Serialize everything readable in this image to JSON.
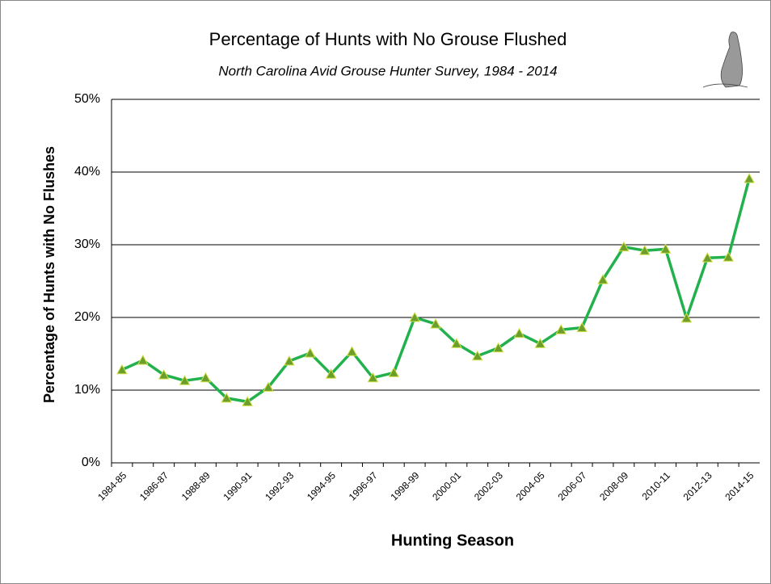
{
  "chart_data": {
    "type": "line",
    "title": "Percentage of Hunts with No Grouse Flushed",
    "subtitle": "North Carolina Avid Grouse Hunter Survey, 1984 - 2014",
    "x_label": "Hunting Season",
    "y_label": "Percentage of Hunts with No Flushes",
    "categories": [
      "1984-85",
      null,
      "1986-87",
      null,
      "1988-89",
      null,
      "1990-91",
      null,
      "1992-93",
      null,
      "1994-95",
      null,
      "1996-97",
      null,
      "1998-99",
      null,
      "2000-01",
      null,
      "2002-03",
      null,
      "2004-05",
      null,
      "2006-07",
      null,
      "2008-09",
      null,
      "2010-11",
      null,
      "2012-13",
      null,
      "2014-15"
    ],
    "series": [
      {
        "color": "#22b14c",
        "marker_color": "#6b9e2a",
        "values": [
          12.8,
          14.1,
          12.1,
          11.3,
          11.7,
          8.9,
          8.4,
          10.4,
          14.0,
          15.1,
          12.2,
          15.3,
          11.7,
          12.4,
          20.0,
          19.1,
          16.4,
          14.7,
          15.8,
          17.8,
          16.4,
          18.3,
          18.6,
          25.2,
          29.7,
          29.2,
          29.4,
          19.9,
          28.2,
          28.3,
          39.1
        ]
      }
    ],
    "ylim": [
      0,
      50
    ],
    "yticks": [
      {
        "value": 0,
        "label": "0%"
      },
      {
        "value": 10,
        "label": "10%"
      },
      {
        "value": 20,
        "label": "20%"
      },
      {
        "value": 30,
        "label": "30%"
      },
      {
        "value": 40,
        "label": "40%"
      },
      {
        "value": 50,
        "label": "50%"
      }
    ],
    "grid": true
  }
}
